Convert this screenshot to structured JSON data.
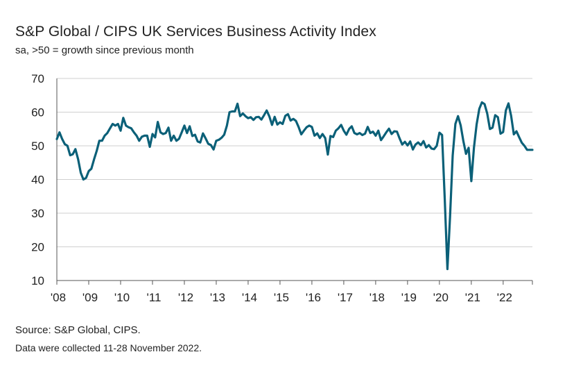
{
  "chart_data": {
    "type": "line",
    "title": "S&P Global / CIPS UK Services Business Activity Index",
    "subtitle": "sa, >50 = growth since previous month",
    "ylim": [
      10,
      70
    ],
    "yticks": [
      10,
      20,
      30,
      40,
      50,
      60,
      70
    ],
    "xlim": [
      2008.0,
      2022.9167
    ],
    "xticks": [
      2008,
      2009,
      2010,
      2011,
      2012,
      2013,
      2014,
      2015,
      2016,
      2017,
      2018,
      2019,
      2020,
      2021,
      2022
    ],
    "xtick_labels": [
      "'08",
      "'09",
      "'10",
      "'11",
      "'12",
      "'13",
      "'14",
      "'15",
      "'16",
      "'17",
      "'18",
      "'19",
      "'20",
      "'21",
      "'22"
    ],
    "grid": true,
    "line_color": "#0b6078",
    "series": [
      {
        "x": [
          2008.0,
          2008.083,
          2008.167,
          2008.25,
          2008.333,
          2008.417,
          2008.5,
          2008.583,
          2008.667,
          2008.75,
          2008.833,
          2008.917,
          2009.0,
          2009.083,
          2009.167,
          2009.25,
          2009.333,
          2009.417,
          2009.5,
          2009.583,
          2009.667,
          2009.75,
          2009.833,
          2009.917,
          2010.0,
          2010.083,
          2010.167,
          2010.25,
          2010.333,
          2010.417,
          2010.5,
          2010.583,
          2010.667,
          2010.75,
          2010.833,
          2010.917,
          2011.0,
          2011.083,
          2011.167,
          2011.25,
          2011.333,
          2011.417,
          2011.5,
          2011.583,
          2011.667,
          2011.75,
          2011.833,
          2011.917,
          2012.0,
          2012.083,
          2012.167,
          2012.25,
          2012.333,
          2012.417,
          2012.5,
          2012.583,
          2012.667,
          2012.75,
          2012.833,
          2012.917,
          2013.0,
          2013.083,
          2013.167,
          2013.25,
          2013.333,
          2013.417,
          2013.5,
          2013.583,
          2013.667,
          2013.75,
          2013.833,
          2013.917,
          2014.0,
          2014.083,
          2014.167,
          2014.25,
          2014.333,
          2014.417,
          2014.5,
          2014.583,
          2014.667,
          2014.75,
          2014.833,
          2014.917,
          2015.0,
          2015.083,
          2015.167,
          2015.25,
          2015.333,
          2015.417,
          2015.5,
          2015.583,
          2015.667,
          2015.75,
          2015.833,
          2015.917,
          2016.0,
          2016.083,
          2016.167,
          2016.25,
          2016.333,
          2016.417,
          2016.5,
          2016.583,
          2016.667,
          2016.75,
          2016.833,
          2016.917,
          2017.0,
          2017.083,
          2017.167,
          2017.25,
          2017.333,
          2017.417,
          2017.5,
          2017.583,
          2017.667,
          2017.75,
          2017.833,
          2017.917,
          2018.0,
          2018.083,
          2018.167,
          2018.25,
          2018.333,
          2018.417,
          2018.5,
          2018.583,
          2018.667,
          2018.75,
          2018.833,
          2018.917,
          2019.0,
          2019.083,
          2019.167,
          2019.25,
          2019.333,
          2019.417,
          2019.5,
          2019.583,
          2019.667,
          2019.75,
          2019.833,
          2019.917,
          2020.0,
          2020.083,
          2020.167,
          2020.25,
          2020.333,
          2020.417,
          2020.5,
          2020.583,
          2020.667,
          2020.75,
          2020.833,
          2020.917,
          2021.0,
          2021.083,
          2021.167,
          2021.25,
          2021.333,
          2021.417,
          2021.5,
          2021.583,
          2021.667,
          2021.75,
          2021.833,
          2021.917,
          2022.0,
          2022.083,
          2022.167,
          2022.25,
          2022.333,
          2022.417,
          2022.5,
          2022.583,
          2022.667,
          2022.75,
          2022.833,
          2022.917
        ],
        "y": [
          52.0,
          54.0,
          52.0,
          50.5,
          50.0,
          47.2,
          47.5,
          49.0,
          46.0,
          42.0,
          40.0,
          40.5,
          42.5,
          43.2,
          46.0,
          48.5,
          51.5,
          51.5,
          53.0,
          53.8,
          55.2,
          56.5,
          56.0,
          56.5,
          54.5,
          58.3,
          56.0,
          55.5,
          55.2,
          54.0,
          53.0,
          51.5,
          52.7,
          53.0,
          53.0,
          49.7,
          53.5,
          52.5,
          57.1,
          54.0,
          53.5,
          53.8,
          55.4,
          51.5,
          53.0,
          51.5,
          52.1,
          54.0,
          56.0,
          53.8,
          55.8,
          52.9,
          53.3,
          51.3,
          51.0,
          53.7,
          52.2,
          50.6,
          50.2,
          48.9,
          51.5,
          51.8,
          52.4,
          53.3,
          56.0,
          60.0,
          60.2,
          60.2,
          62.5,
          58.8,
          59.6,
          58.8,
          58.2,
          58.5,
          57.7,
          58.5,
          58.6,
          57.8,
          59.1,
          60.5,
          58.7,
          56.2,
          58.6,
          56.3,
          57.0,
          56.5,
          58.9,
          59.4,
          57.5,
          58.0,
          57.4,
          55.6,
          53.4,
          54.5,
          55.5,
          56.0,
          55.6,
          53.0,
          53.7,
          52.3,
          53.5,
          52.3,
          47.4,
          52.9,
          52.6,
          54.5,
          55.2,
          56.2,
          54.5,
          53.3,
          55.0,
          55.8,
          53.8,
          53.4,
          53.8,
          53.2,
          53.6,
          55.6,
          53.8,
          54.2,
          53.0,
          54.5,
          51.7,
          52.8,
          54.0,
          55.1,
          53.5,
          54.3,
          54.2,
          52.2,
          50.4,
          51.2,
          50.1,
          51.3,
          48.9,
          50.4,
          51.0,
          50.2,
          51.4,
          49.5,
          50.2,
          49.2,
          49.0,
          50.0,
          53.9,
          53.2,
          34.5,
          13.4,
          29.0,
          47.1,
          56.5,
          58.8,
          56.1,
          51.4,
          47.6,
          49.4,
          39.5,
          49.5,
          56.3,
          61.0,
          62.9,
          62.4,
          59.6,
          55.0,
          55.4,
          59.1,
          58.5,
          53.6,
          54.1,
          60.5,
          62.6,
          58.9,
          53.4,
          54.3,
          52.6,
          50.9,
          50.0,
          48.8,
          48.8,
          48.8
        ]
      }
    ]
  },
  "footer": {
    "source": "Source: S&P Global, CIPS.",
    "note": "Data were collected 11-28 November  2022."
  }
}
